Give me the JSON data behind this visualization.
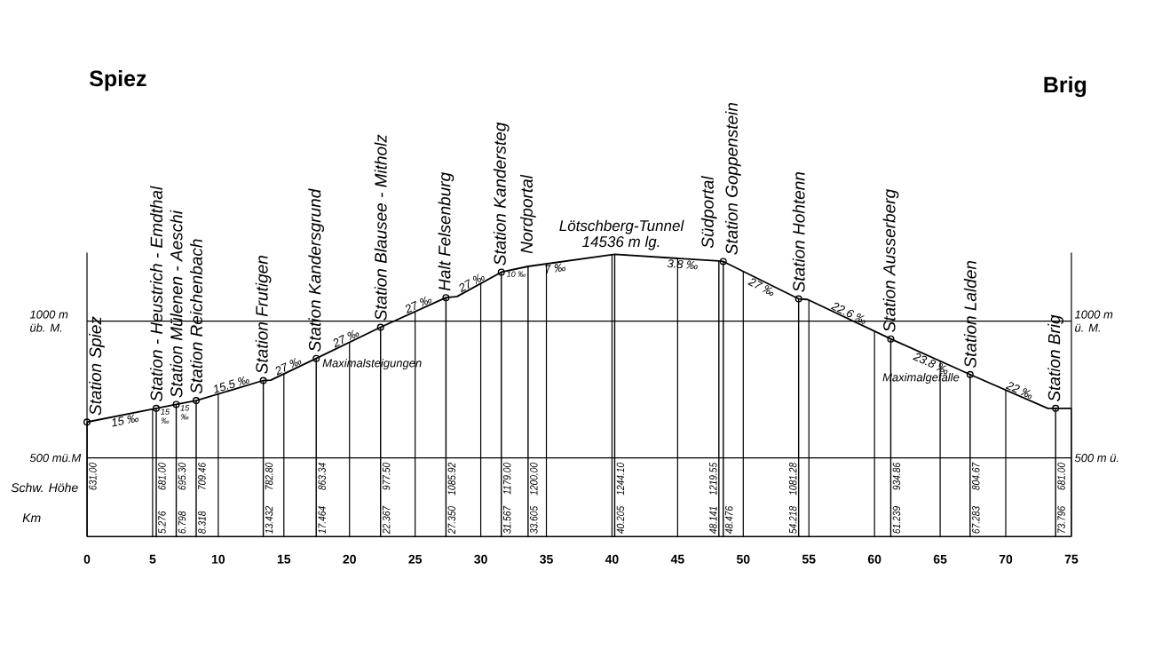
{
  "chart_data": {
    "type": "line",
    "xlim": [
      0,
      75
    ],
    "xticks": [
      0,
      5,
      10,
      15,
      20,
      25,
      30,
      35,
      40,
      45,
      50,
      55,
      60,
      65,
      70,
      75
    ],
    "ylim": [
      212,
      1250
    ],
    "yticks": [
      {
        "value": 500,
        "label": "500 mü.M"
      },
      {
        "value": 1000,
        "label": "1000 m üb. M."
      }
    ],
    "y2lim": [
      212,
      1250
    ],
    "y2ticks": [
      {
        "value": 500,
        "label": "500 m ü."
      },
      {
        "value": 1000,
        "label": "1000 m ü. M."
      }
    ],
    "grid": true,
    "series": [
      {
        "type": "line",
        "color": "#000000",
        "x": [
          0,
          5.276,
          6.798,
          8.318,
          13.432,
          14.0,
          17.464,
          22.367,
          27.35,
          28.2,
          31.567,
          33.605,
          40.205,
          48.141,
          48.476,
          54.218,
          54.9,
          61.239,
          67.283,
          73.2,
          73.796,
          75
        ],
        "values": [
          631.0,
          681.0,
          695.3,
          709.46,
          782.8,
          784,
          863.34,
          977.5,
          1085.92,
          1090,
          1179.0,
          1200.0,
          1244.1,
          1219.55,
          1218,
          1081.28,
          1079,
          934.86,
          804.67,
          681,
          681.0,
          681
        ]
      },
      {
        "type": "bar",
        "color": "#000000",
        "marker": "circle",
        "x": [
          0,
          5.276,
          6.798,
          8.318,
          13.432,
          17.464,
          22.367,
          27.35,
          31.567,
          48.476,
          54.218,
          61.239,
          67.283,
          73.796
        ],
        "values": [
          631.0,
          681.0,
          695.3,
          709.46,
          782.8,
          863.34,
          977.5,
          1085.92,
          1179.0,
          1218,
          1081.28,
          934.86,
          804.67,
          681.0
        ],
        "value_labels": [
          "631.00",
          "681.00",
          "695.30",
          "709.46",
          "782.80",
          "863.34",
          "977.50",
          "1085.92",
          "1179.00",
          null,
          "1081.28",
          "934.86",
          "804.67",
          "681.00"
        ]
      },
      {
        "type": "bar",
        "color": "#000000",
        "x": [
          33.605,
          40.205,
          48.141
        ],
        "values": [
          1200.0,
          1244.1,
          1219.55
        ],
        "value_labels": [
          "1200.00",
          "1244.10",
          "1219.55"
        ]
      }
    ],
    "annotations": [
      "Spiez",
      "Brig",
      "Schw. Höhe",
      "Km",
      "Lötschberg-Tunnel",
      "14536 m lg.",
      "Maximalsteigungen",
      "Maximalgefälle",
      {
        "text": "Station Spiez",
        "x": 0,
        "y": 631.0
      },
      {
        "text": "Station - Heustrich - Emdthal",
        "x": 5.276,
        "y": 681.0
      },
      {
        "text": "Station Mülenen - Aeschi",
        "x": 6.798,
        "y": 695.3
      },
      {
        "text": "Station Reichenbach",
        "x": 8.318,
        "y": 709.46
      },
      {
        "text": "Station Frutigen",
        "x": 13.432,
        "y": 782.8
      },
      {
        "text": "Station Kandersgrund",
        "x": 17.464,
        "y": 863.34
      },
      {
        "text": "Station Blausee - Mitholz",
        "x": 22.367,
        "y": 977.5
      },
      {
        "text": "Halt Felsenburg",
        "x": 27.35,
        "y": 1085.92
      },
      {
        "text": "Station Kandersteg",
        "x": 31.567,
        "y": 1179.0
      },
      {
        "text": "Nordportal",
        "x": 33.605,
        "y": 1200.0
      },
      {
        "text": "Südportal",
        "x": 48.141,
        "y": 1219.55
      },
      {
        "text": "Station Goppenstein",
        "x": 48.476,
        "y": 1218
      },
      {
        "text": "Station Hohtenn",
        "x": 54.218,
        "y": 1081.28
      },
      {
        "text": "Station Ausserberg",
        "x": 61.239,
        "y": 934.86
      },
      {
        "text": "Station Lalden",
        "x": 67.283,
        "y": 804.67
      },
      {
        "text": "Station Brig",
        "x": 73.796,
        "y": 681.0
      },
      {
        "text": "15 ‰",
        "x": 2.8,
        "y": 657.5
      },
      {
        "text": "15 ‰",
        "x": 5.95,
        "y": 679.3
      },
      {
        "text": "15 ‰",
        "x": 7.45,
        "y": 693.4
      },
      {
        "text": "15.5 ‰",
        "x": 11.1,
        "y": 749.4
      },
      {
        "text": "27 ‰",
        "x": 15.5,
        "y": 818.4
      },
      {
        "text": "27 ‰",
        "x": 19.9,
        "y": 920.1
      },
      {
        "text": "27 ‰",
        "x": 25.4,
        "y": 1043.5
      },
      {
        "text": "27 ‰",
        "x": 29.5,
        "y": 1124.4
      },
      {
        "text": "10 ‰",
        "x": 32.7,
        "y": 1182.7
      },
      {
        "text": "7 ‰",
        "x": 35.6,
        "y": 1213.3
      },
      {
        "text": "3.8 ‰",
        "x": 45.4,
        "y": 1228.0
      },
      {
        "text": "27 ‰",
        "x": 51.6,
        "y": 1143.6
      },
      {
        "text": "22.6 ‰",
        "x": 57.9,
        "y": 1010.8
      },
      {
        "text": "23.8 ‰",
        "x": 64.5,
        "y": 864.6
      },
      {
        "text": "22 ‰",
        "x": 70.9,
        "y": 729.1
      },
      {
        "text": "5.276",
        "x": 5.276,
        "y": 212
      },
      {
        "text": "6.798",
        "x": 6.798,
        "y": 212
      },
      {
        "text": "8.318",
        "x": 8.318,
        "y": 212
      },
      {
        "text": "13.432",
        "x": 13.432,
        "y": 212
      },
      {
        "text": "17.464",
        "x": 17.464,
        "y": 212
      },
      {
        "text": "22.367",
        "x": 22.367,
        "y": 212
      },
      {
        "text": "27.350",
        "x": 27.35,
        "y": 212
      },
      {
        "text": "31.567",
        "x": 31.567,
        "y": 212
      },
      {
        "text": "33.605",
        "x": 33.605,
        "y": 212
      },
      {
        "text": "40.205",
        "x": 40.205,
        "y": 212
      },
      {
        "text": "48.141",
        "x": 48.141,
        "y": 212
      },
      {
        "text": "48.476",
        "x": 48.476,
        "y": 212
      },
      {
        "text": "54.218",
        "x": 54.218,
        "y": 212
      },
      {
        "text": "61.239",
        "x": 61.239,
        "y": 212
      },
      {
        "text": "67.283",
        "x": 67.283,
        "y": 212
      },
      {
        "text": "73.796",
        "x": 73.796,
        "y": 212
      }
    ]
  }
}
